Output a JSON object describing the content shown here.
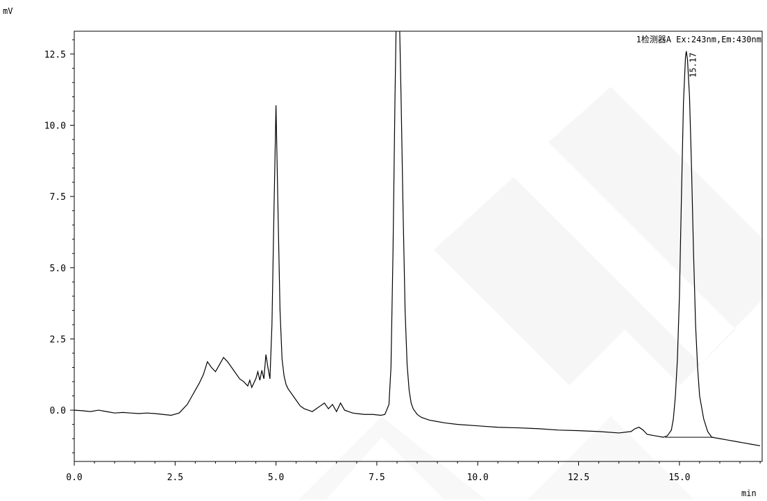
{
  "chart_data": {
    "type": "line",
    "y_unit": "mV",
    "x_unit": "min",
    "detector_label": "1检测器A Ex:243nm,Em:430nm",
    "xlim": [
      0.0,
      17.05
    ],
    "ylim": [
      -1.8,
      13.3
    ],
    "x_ticks": [
      {
        "value": 0.0,
        "label": "0.0"
      },
      {
        "value": 2.5,
        "label": "2.5"
      },
      {
        "value": 5.0,
        "label": "5.0"
      },
      {
        "value": 7.5,
        "label": "7.5"
      },
      {
        "value": 10.0,
        "label": "10.0"
      },
      {
        "value": 12.5,
        "label": "12.5"
      },
      {
        "value": 15.0,
        "label": "15.0"
      }
    ],
    "y_ticks": [
      {
        "value": 0.0,
        "label": "0.0"
      },
      {
        "value": 2.5,
        "label": "2.5"
      },
      {
        "value": 5.0,
        "label": "5.0"
      },
      {
        "value": 7.5,
        "label": "7.5"
      },
      {
        "value": 10.0,
        "label": "10.0"
      },
      {
        "value": 12.5,
        "label": "12.5"
      }
    ],
    "peak_labels": [
      {
        "x": 15.17,
        "y": 12.6,
        "label": "15.17"
      }
    ],
    "baseline_segment": {
      "x": [
        14.65,
        15.85
      ],
      "y": [
        -0.95,
        -0.95
      ]
    },
    "series": [
      {
        "x": [
          0.0,
          0.2,
          0.4,
          0.6,
          0.8,
          1.0,
          1.2,
          1.4,
          1.6,
          1.8,
          2.0,
          2.2,
          2.4,
          2.6,
          2.7,
          2.8,
          2.9,
          3.0,
          3.1,
          3.2,
          3.3,
          3.4,
          3.5,
          3.6,
          3.7,
          3.8,
          3.9,
          4.0,
          4.1,
          4.2,
          4.3,
          4.35,
          4.4,
          4.5,
          4.55,
          4.6,
          4.65,
          4.7,
          4.75,
          4.8,
          4.85,
          4.9,
          4.95,
          5.0,
          5.05,
          5.1,
          5.15,
          5.2,
          5.25,
          5.3,
          5.4,
          5.5,
          5.6,
          5.7,
          5.8,
          5.9,
          6.0,
          6.1,
          6.2,
          6.3,
          6.4,
          6.5,
          6.6,
          6.7,
          6.8,
          6.9,
          7.0,
          7.2,
          7.4,
          7.6,
          7.7,
          7.8,
          7.85,
          7.9,
          7.95,
          8.0,
          8.05,
          8.1,
          8.15,
          8.2,
          8.25,
          8.3,
          8.35,
          8.4,
          8.5,
          8.6,
          8.7,
          8.8,
          9.0,
          9.2,
          9.5,
          10.0,
          10.5,
          11.0,
          11.5,
          12.0,
          12.5,
          13.0,
          13.5,
          13.8,
          13.9,
          14.0,
          14.1,
          14.2,
          14.4,
          14.6,
          14.7,
          14.8,
          14.85,
          14.9,
          14.95,
          15.0,
          15.05,
          15.1,
          15.15,
          15.17,
          15.2,
          15.25,
          15.3,
          15.35,
          15.4,
          15.45,
          15.5,
          15.6,
          15.7,
          15.8,
          16.0,
          16.2,
          16.4,
          16.6,
          16.8,
          17.0
        ],
        "y": [
          0.0,
          -0.02,
          -0.05,
          0.0,
          -0.05,
          -0.1,
          -0.08,
          -0.1,
          -0.12,
          -0.1,
          -0.12,
          -0.15,
          -0.18,
          -0.1,
          0.05,
          0.2,
          0.45,
          0.7,
          0.95,
          1.25,
          1.7,
          1.5,
          1.35,
          1.6,
          1.85,
          1.7,
          1.5,
          1.3,
          1.1,
          1.0,
          0.85,
          1.05,
          0.8,
          1.1,
          1.35,
          1.05,
          1.4,
          1.1,
          1.95,
          1.5,
          1.1,
          3.0,
          7.0,
          10.7,
          7.0,
          3.5,
          1.8,
          1.2,
          0.9,
          0.75,
          0.55,
          0.35,
          0.15,
          0.05,
          0.0,
          -0.05,
          0.05,
          0.15,
          0.25,
          0.05,
          0.2,
          -0.05,
          0.25,
          0.0,
          -0.05,
          -0.1,
          -0.12,
          -0.15,
          -0.15,
          -0.18,
          -0.15,
          0.2,
          1.5,
          5.5,
          11.0,
          15.5,
          14.5,
          11.0,
          7.0,
          3.5,
          1.6,
          0.7,
          0.25,
          0.05,
          -0.15,
          -0.25,
          -0.3,
          -0.35,
          -0.4,
          -0.45,
          -0.5,
          -0.55,
          -0.6,
          -0.62,
          -0.65,
          -0.7,
          -0.72,
          -0.75,
          -0.8,
          -0.75,
          -0.65,
          -0.6,
          -0.7,
          -0.85,
          -0.9,
          -0.95,
          -0.9,
          -0.7,
          -0.3,
          0.5,
          1.8,
          4.0,
          7.5,
          10.8,
          12.4,
          12.6,
          12.3,
          11.0,
          8.5,
          5.5,
          3.0,
          1.5,
          0.5,
          -0.3,
          -0.75,
          -0.95,
          -1.0,
          -1.05,
          -1.1,
          -1.15,
          -1.2,
          -1.25
        ]
      }
    ]
  }
}
